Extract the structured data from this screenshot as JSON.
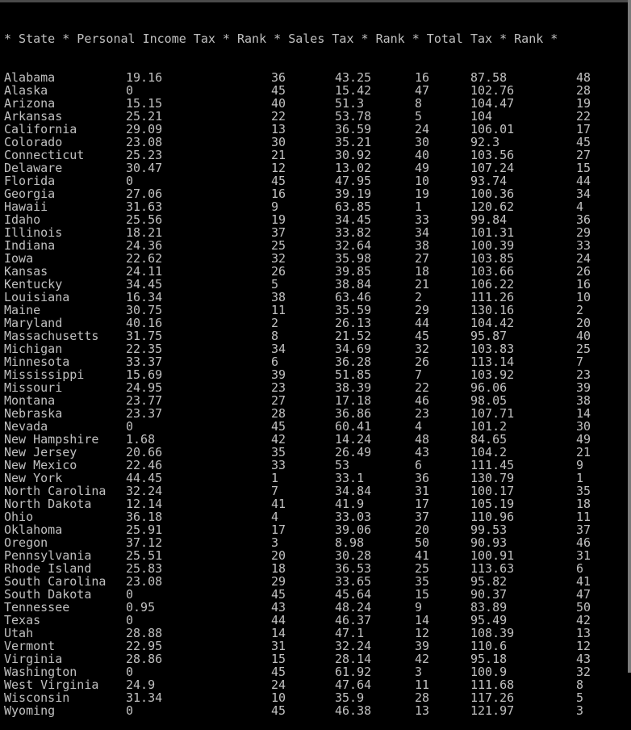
{
  "header": "* State * Personal Income Tax * Rank * Sales Tax * Rank * Total Tax * Rank *",
  "columns": [
    "State",
    "Personal Income Tax",
    "Rank",
    "Sales Tax",
    "Rank",
    "Total Tax",
    "Rank"
  ],
  "rows": [
    [
      "Alabama",
      "19.16",
      "36",
      "43.25",
      "16",
      "87.58",
      "48"
    ],
    [
      "Alaska",
      "0",
      "45",
      "15.42",
      "47",
      "102.76",
      "28"
    ],
    [
      "Arizona",
      "15.15",
      "40",
      "51.3",
      "8",
      "104.47",
      "19"
    ],
    [
      "Arkansas",
      "25.21",
      "22",
      "53.78",
      "5",
      "104",
      "22"
    ],
    [
      "California",
      "29.09",
      "13",
      "36.59",
      "24",
      "106.01",
      "17"
    ],
    [
      "Colorado",
      "23.08",
      "30",
      "35.21",
      "30",
      "92.3",
      "45"
    ],
    [
      "Connecticut",
      "25.23",
      "21",
      "30.92",
      "40",
      "103.56",
      "27"
    ],
    [
      "Delaware",
      "30.47",
      "12",
      "13.02",
      "49",
      "107.24",
      "15"
    ],
    [
      "Florida",
      "0",
      "45",
      "47.95",
      "10",
      "93.74",
      "44"
    ],
    [
      "Georgia",
      "27.06",
      "16",
      "39.19",
      "19",
      "100.36",
      "34"
    ],
    [
      "Hawaii",
      "31.63",
      "9",
      "63.85",
      "1",
      "120.62",
      "4"
    ],
    [
      "Idaho",
      "25.56",
      "19",
      "34.45",
      "33",
      "99.84",
      "36"
    ],
    [
      "Illinois",
      "18.21",
      "37",
      "33.82",
      "34",
      "101.31",
      "29"
    ],
    [
      "Indiana",
      "24.36",
      "25",
      "32.64",
      "38",
      "100.39",
      "33"
    ],
    [
      "Iowa",
      "22.62",
      "32",
      "35.98",
      "27",
      "103.85",
      "24"
    ],
    [
      "Kansas",
      "24.11",
      "26",
      "39.85",
      "18",
      "103.66",
      "26"
    ],
    [
      "Kentucky",
      "34.45",
      "5",
      "38.84",
      "21",
      "106.22",
      "16"
    ],
    [
      "Louisiana",
      "16.34",
      "38",
      "63.46",
      "2",
      "111.26",
      "10"
    ],
    [
      "Maine",
      "30.75",
      "11",
      "35.59",
      "29",
      "130.16",
      "2"
    ],
    [
      "Maryland",
      "40.16",
      "2",
      "26.13",
      "44",
      "104.42",
      "20"
    ],
    [
      "Massachusetts",
      "31.75",
      "8",
      "21.52",
      "45",
      "95.87",
      "40"
    ],
    [
      "Michigan",
      "22.35",
      "34",
      "34.69",
      "32",
      "103.83",
      "25"
    ],
    [
      "Minnesota",
      "33.37",
      "6",
      "36.28",
      "26",
      "113.14",
      "7"
    ],
    [
      "Mississippi",
      "15.69",
      "39",
      "51.85",
      "7",
      "103.92",
      "23"
    ],
    [
      "Missouri",
      "24.95",
      "23",
      "38.39",
      "22",
      "96.06",
      "39"
    ],
    [
      "Montana",
      "23.77",
      "27",
      "17.18",
      "46",
      "98.05",
      "38"
    ],
    [
      "Nebraska",
      "23.37",
      "28",
      "36.86",
      "23",
      "107.71",
      "14"
    ],
    [
      "Nevada",
      "0",
      "45",
      "60.41",
      "4",
      "101.2",
      "30"
    ],
    [
      "New Hampshire",
      "1.68",
      "42",
      "14.24",
      "48",
      "84.65",
      "49"
    ],
    [
      "New Jersey",
      "20.66",
      "35",
      "26.49",
      "43",
      "104.2",
      "21"
    ],
    [
      "New Mexico",
      "22.46",
      "33",
      "53",
      "6",
      "111.45",
      "9"
    ],
    [
      "New York",
      "44.45",
      "1",
      "33.1",
      "36",
      "130.79",
      "1"
    ],
    [
      "North Carolina",
      "32.24",
      "7",
      "34.84",
      "31",
      "100.17",
      "35"
    ],
    [
      "North Dakota",
      "12.14",
      "41",
      "41.9",
      "17",
      "105.19",
      "18"
    ],
    [
      "Ohio",
      "36.18",
      "4",
      "33.03",
      "37",
      "110.96",
      "11"
    ],
    [
      "Oklahoma",
      "25.91",
      "17",
      "39.06",
      "20",
      "99.53",
      "37"
    ],
    [
      "Oregon",
      "37.12",
      "3",
      "8.98",
      "50",
      "90.93",
      "46"
    ],
    [
      "Pennsylvania",
      "25.51",
      "20",
      "30.28",
      "41",
      "100.91",
      "31"
    ],
    [
      "Rhode Island",
      "25.83",
      "18",
      "36.53",
      "25",
      "113.63",
      "6"
    ],
    [
      "South Carolina",
      "23.08",
      "29",
      "33.65",
      "35",
      "95.82",
      "41"
    ],
    [
      "South Dakota",
      "0",
      "45",
      "45.64",
      "15",
      "90.37",
      "47"
    ],
    [
      "Tennessee",
      "0.95",
      "43",
      "48.24",
      "9",
      "83.89",
      "50"
    ],
    [
      "Texas",
      "0",
      "44",
      "46.37",
      "14",
      "95.49",
      "42"
    ],
    [
      "Utah",
      "28.88",
      "14",
      "47.1",
      "12",
      "108.39",
      "13"
    ],
    [
      "Vermont",
      "22.95",
      "31",
      "32.24",
      "39",
      "110.6",
      "12"
    ],
    [
      "Virginia",
      "28.86",
      "15",
      "28.14",
      "42",
      "95.18",
      "43"
    ],
    [
      "Washington",
      "0",
      "45",
      "61.92",
      "3",
      "100.9",
      "32"
    ],
    [
      "West Virginia",
      "24.9",
      "24",
      "47.64",
      "11",
      "111.68",
      "8"
    ],
    [
      "Wisconsin",
      "31.34",
      "10",
      "35.9",
      "28",
      "117.26",
      "5"
    ],
    [
      "Wyoming",
      "0",
      "45",
      "46.38",
      "13",
      "121.97",
      "3"
    ]
  ],
  "colors": {
    "background": "#000000",
    "text": "#c0c0c0",
    "scrollbar_edge": "#7a7a7a"
  }
}
